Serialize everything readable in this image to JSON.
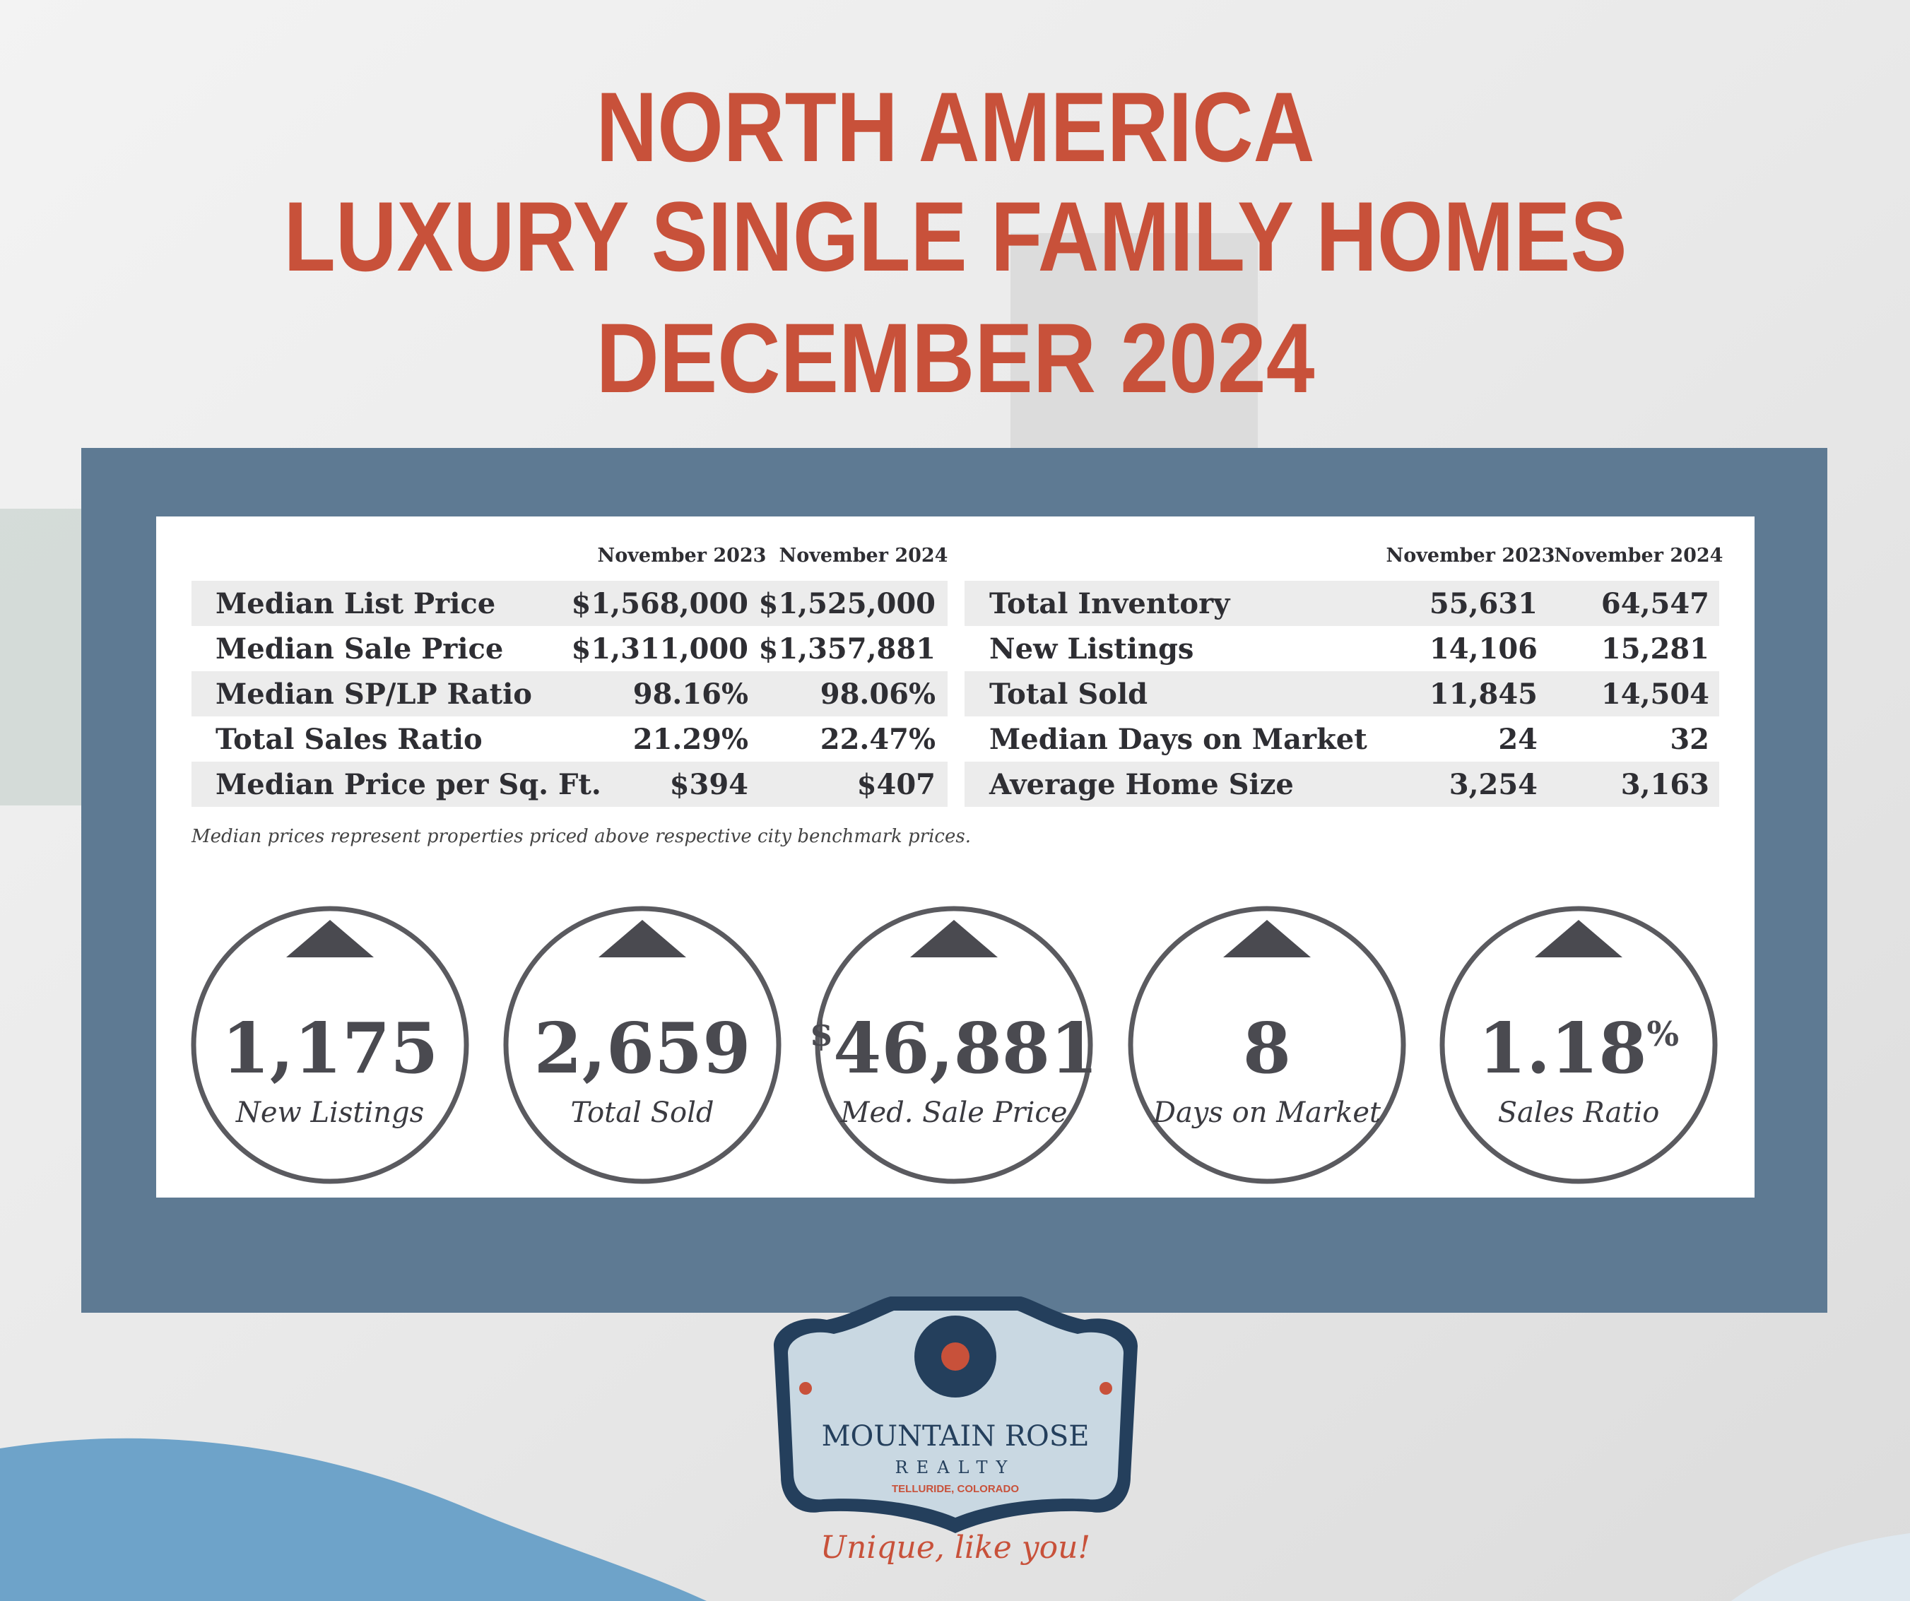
{
  "header": {
    "title_lines": [
      "NORTH AMERICA",
      "LUXURY SINGLE FAMILY HOMES",
      "DECEMBER 2024"
    ]
  },
  "tables": [
    {
      "columns": [
        "November 2023",
        "November 2024"
      ],
      "rows": [
        [
          "Median List Price",
          "$1,568,000",
          "$1,525,000"
        ],
        [
          "Median Sale Price",
          "$1,311,000",
          "$1,357,881"
        ],
        [
          "Median SP/LP Ratio",
          "98.16%",
          "98.06%"
        ],
        [
          "Total Sales Ratio",
          "21.29%",
          "22.47%"
        ],
        [
          "Median Price per Sq. Ft.",
          "$394",
          "$407"
        ]
      ]
    },
    {
      "columns": [
        "November 2023",
        "November 2024"
      ],
      "rows": [
        [
          "Total Inventory",
          "55,631",
          "64,547"
        ],
        [
          "New Listings",
          "14,106",
          "15,281"
        ],
        [
          "Total Sold",
          "11,845",
          "14,504"
        ],
        [
          "Median Days on Market",
          "24",
          "32"
        ],
        [
          "Average Home Size",
          "3,254",
          "3,163"
        ]
      ]
    }
  ],
  "footnote": "Median prices represent properties priced above respective city benchmark prices.",
  "stats": [
    {
      "value": "1,175",
      "label": "New Listings"
    },
    {
      "value": "2,659",
      "label": "Total Sold"
    },
    {
      "prefix": "$",
      "value": "46,881",
      "label": "Med. Sale Price"
    },
    {
      "value": "8",
      "label": "Days on Market"
    },
    {
      "value": "1.18",
      "suffix": "%",
      "label": "Sales Ratio"
    }
  ],
  "logo": {
    "name": "MOUNTAIN ROSE",
    "sub": "REALTY",
    "place": "TELLURIDE, COLORADO",
    "tagline": "Unique, like you!"
  }
}
